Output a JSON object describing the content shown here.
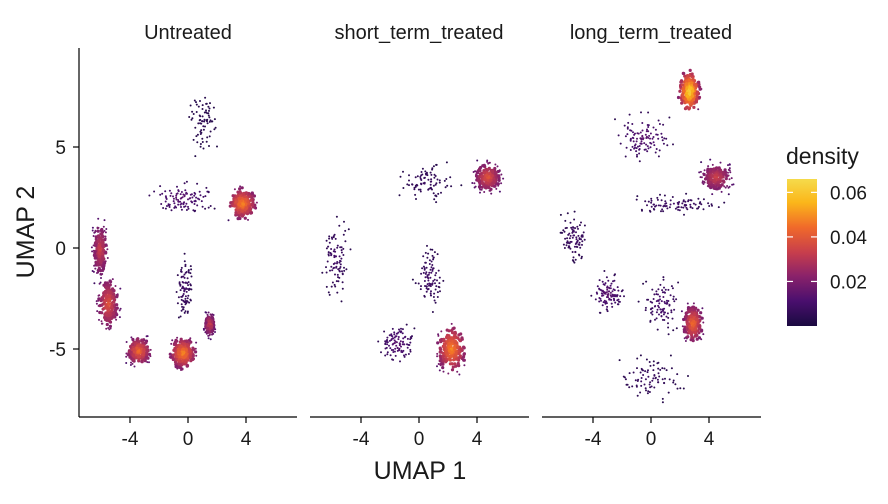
{
  "chart_data": {
    "type": "scatter",
    "subtype": "faceted UMAP density scatter",
    "xlabel": "UMAP 1",
    "ylabel": "UMAP 2",
    "xlim": [
      -7.5,
      7.5
    ],
    "ylim": [
      -8.5,
      10
    ],
    "x_ticks": [
      "-4",
      "0",
      "4"
    ],
    "y_ticks": [
      "-5",
      "0",
      "5"
    ],
    "x_tick_values": [
      -4,
      0,
      4
    ],
    "y_tick_values": [
      -5,
      0,
      5
    ],
    "legend": {
      "title": "density",
      "position": "right",
      "ticks": [
        "0.06",
        "0.04",
        "0.02"
      ],
      "tick_values": [
        0.06,
        0.04,
        0.02
      ],
      "range": [
        0.0,
        0.066
      ],
      "colors": [
        "#1a0a40",
        "#4a0f6e",
        "#8a226a",
        "#c73e4c",
        "#f0692a",
        "#fbb61a",
        "#f5db4b"
      ]
    },
    "panels": [
      {
        "title": "Untreated",
        "clusters": [
          {
            "x": [
              -6.8,
              -5.3
            ],
            "y": [
              -2.0,
              1.8
            ],
            "density": 0.035
          },
          {
            "x": [
              -6.5,
              -4.5
            ],
            "y": [
              -4.5,
              -1.0
            ],
            "density": 0.04
          },
          {
            "x": [
              -4.5,
              -2.3
            ],
            "y": [
              -6.0,
              -4.2
            ],
            "density": 0.045
          },
          {
            "x": [
              -1.5,
              0.8
            ],
            "y": [
              -6.2,
              -4.2
            ],
            "density": 0.05
          },
          {
            "x": [
              1.0,
              2.0
            ],
            "y": [
              -4.6,
              -3.0
            ],
            "density": 0.035
          },
          {
            "x": [
              2.5,
              5.0
            ],
            "y": [
              1.2,
              3.2
            ],
            "density": 0.05
          },
          {
            "x": [
              -3.5,
              2.5
            ],
            "y": [
              1.5,
              3.5
            ],
            "density": 0.015
          },
          {
            "x": [
              -1.0,
              0.5
            ],
            "y": [
              -4.0,
              0.0
            ],
            "density": 0.01
          },
          {
            "x": [
              -0.5,
              2.5
            ],
            "y": [
              4.0,
              8.5
            ],
            "density": 0.005
          }
        ]
      },
      {
        "title": "short_term_treated",
        "clusters": [
          {
            "x": [
              -7.0,
              -4.5
            ],
            "y": [
              -3.0,
              2.0
            ],
            "density": 0.01
          },
          {
            "x": [
              -3.0,
              0.0
            ],
            "y": [
              -6.0,
              -3.5
            ],
            "density": 0.015
          },
          {
            "x": [
              1.0,
              3.5
            ],
            "y": [
              -6.5,
              -3.5
            ],
            "density": 0.05
          },
          {
            "x": [
              3.5,
              6.0
            ],
            "y": [
              2.5,
              4.5
            ],
            "density": 0.04
          },
          {
            "x": [
              -2.0,
              3.0
            ],
            "y": [
              2.0,
              4.5
            ],
            "density": 0.008
          },
          {
            "x": [
              -0.5,
              2.0
            ],
            "y": [
              -3.5,
              0.5
            ],
            "density": 0.01
          }
        ]
      },
      {
        "title": "long_term_treated",
        "clusters": [
          {
            "x": [
              1.8,
              3.5
            ],
            "y": [
              6.5,
              9.0
            ],
            "density": 0.066
          },
          {
            "x": [
              -3.0,
              2.0
            ],
            "y": [
              4.0,
              7.0
            ],
            "density": 0.015
          },
          {
            "x": [
              3.0,
              6.0
            ],
            "y": [
              2.5,
              4.5
            ],
            "density": 0.035
          },
          {
            "x": [
              -3.0,
              6.0
            ],
            "y": [
              1.5,
              2.8
            ],
            "density": 0.01
          },
          {
            "x": [
              2.0,
              3.8
            ],
            "y": [
              -5.0,
              -2.5
            ],
            "density": 0.045
          },
          {
            "x": [
              -6.5,
              -4.0
            ],
            "y": [
              -1.0,
              2.0
            ],
            "density": 0.01
          },
          {
            "x": [
              -4.5,
              -1.5
            ],
            "y": [
              -3.5,
              -1.0
            ],
            "density": 0.015
          },
          {
            "x": [
              -1.0,
              2.5
            ],
            "y": [
              -4.5,
              -1.0
            ],
            "density": 0.012
          },
          {
            "x": [
              -3.5,
              3.0
            ],
            "y": [
              -8.0,
              -5.0
            ],
            "density": 0.008
          }
        ]
      }
    ]
  }
}
